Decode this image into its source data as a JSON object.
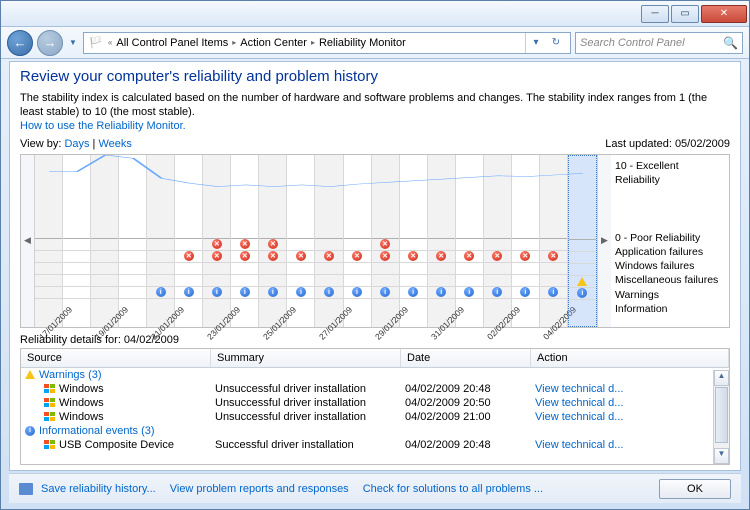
{
  "breadcrumb": {
    "root": "All Control Panel Items",
    "l2": "Action Center",
    "l3": "Reliability Monitor"
  },
  "search": {
    "placeholder": "Search Control Panel"
  },
  "page": {
    "title": "Review your computer's reliability and problem history",
    "desc": "The stability index is calculated based on the number of hardware and software problems and changes. The stability index ranges from 1 (the least stable) to 10 (the most stable).",
    "how_link": "How to use the Reliability Monitor.",
    "viewby_label": "View by:",
    "viewby_days": "Days",
    "viewby_weeks": "Weeks",
    "last_updated_label": "Last updated:",
    "last_updated_value": "05/02/2009"
  },
  "chart": {
    "ytop": "10 - Excellent Reliability",
    "ybottom": "0 - Poor Reliability",
    "legend": [
      "Application failures",
      "Windows failures",
      "Miscellaneous failures",
      "Warnings",
      "Information"
    ],
    "dates": [
      "17/01/2009",
      "19/01/2009",
      "21/01/2009",
      "23/01/2009",
      "25/01/2009",
      "27/01/2009",
      "29/01/2009",
      "31/01/2009",
      "02/02/2009",
      "04/02/2009"
    ],
    "line_y": [
      8,
      8,
      10,
      9.6,
      7.2,
      6.6,
      6.2,
      6.4,
      6.2,
      6.4,
      6.2,
      6.5,
      6.7,
      6.9,
      7.1,
      7.3,
      7.5,
      7.4,
      7.6,
      7.8
    ],
    "line_color": "#6aa8ff",
    "selected_col": 19,
    "events": {
      "app": [
        0,
        0,
        0,
        0,
        0,
        0,
        1,
        1,
        1,
        0,
        0,
        0,
        1,
        0,
        0,
        0,
        0,
        0,
        0,
        0
      ],
      "win": [
        0,
        0,
        0,
        0,
        0,
        1,
        1,
        1,
        1,
        1,
        1,
        1,
        1,
        1,
        1,
        1,
        1,
        1,
        1,
        0
      ],
      "misc": [
        0,
        0,
        0,
        0,
        0,
        0,
        0,
        0,
        0,
        0,
        0,
        0,
        0,
        0,
        0,
        0,
        0,
        0,
        0,
        0
      ],
      "warn": [
        0,
        0,
        0,
        0,
        0,
        0,
        0,
        0,
        0,
        0,
        0,
        0,
        0,
        0,
        0,
        0,
        0,
        0,
        0,
        1
      ],
      "info": [
        0,
        0,
        0,
        0,
        1,
        1,
        1,
        1,
        1,
        1,
        1,
        1,
        1,
        1,
        1,
        1,
        1,
        1,
        1,
        1
      ]
    }
  },
  "details": {
    "header": "Reliability details for: 04/02/2009",
    "columns": {
      "source": "Source",
      "summary": "Summary",
      "date": "Date",
      "action": "Action"
    },
    "groups": [
      {
        "icon": "warn",
        "label": "Warnings (3)",
        "rows": [
          {
            "src": "Windows",
            "sum": "Unsuccessful driver installation",
            "date": "04/02/2009 20:48",
            "act": "View  technical d..."
          },
          {
            "src": "Windows",
            "sum": "Unsuccessful driver installation",
            "date": "04/02/2009 20:50",
            "act": "View  technical d..."
          },
          {
            "src": "Windows",
            "sum": "Unsuccessful driver installation",
            "date": "04/02/2009 21:00",
            "act": "View  technical d..."
          }
        ]
      },
      {
        "icon": "info",
        "label": "Informational events (3)",
        "rows": [
          {
            "src": "USB Composite Device",
            "sum": "Successful driver installation",
            "date": "04/02/2009 20:48",
            "act": "View  technical d..."
          }
        ]
      }
    ]
  },
  "footer": {
    "save": "Save reliability history...",
    "view_reports": "View problem reports and responses",
    "check": "Check for solutions to all problems ...",
    "ok": "OK"
  }
}
